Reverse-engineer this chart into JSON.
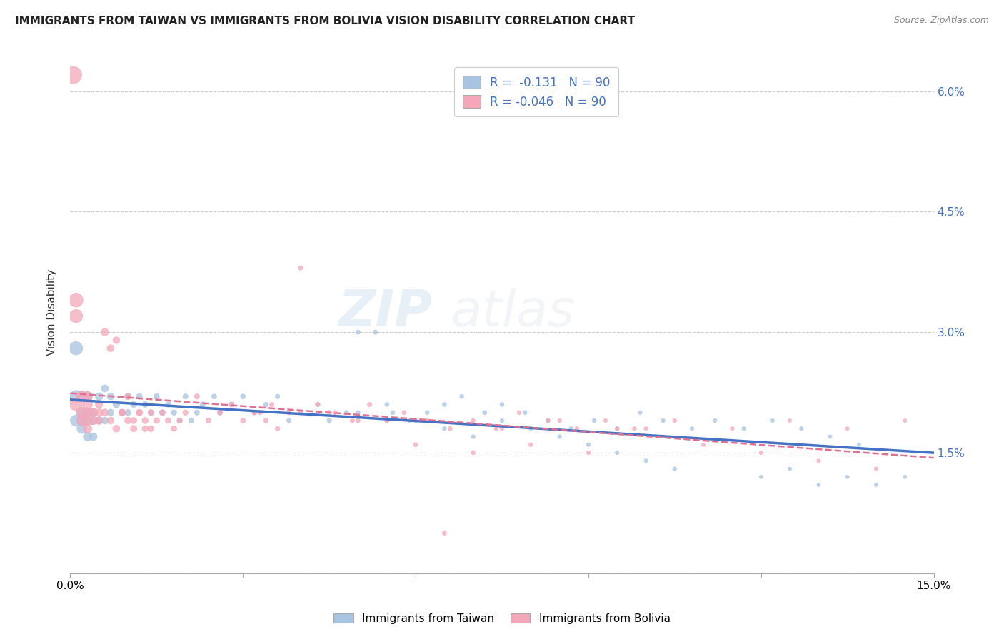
{
  "title": "IMMIGRANTS FROM TAIWAN VS IMMIGRANTS FROM BOLIVIA VISION DISABILITY CORRELATION CHART",
  "source": "Source: ZipAtlas.com",
  "ylabel": "Vision Disability",
  "x_min": 0.0,
  "x_max": 0.15,
  "y_min": 0.0,
  "y_max": 0.065,
  "taiwan_color": "#a8c4e0",
  "bolivia_color": "#f4a7b9",
  "taiwan_line_color": "#4472c4",
  "bolivia_line_color": "#e07090",
  "taiwan_R": -0.131,
  "taiwan_N": 90,
  "bolivia_R": -0.046,
  "bolivia_N": 90,
  "legend_taiwan_label": "Immigrants from Taiwan",
  "legend_bolivia_label": "Immigrants from Bolivia",
  "taiwan_x": [
    0.001,
    0.001,
    0.001,
    0.002,
    0.002,
    0.002,
    0.002,
    0.003,
    0.003,
    0.003,
    0.003,
    0.004,
    0.004,
    0.004,
    0.005,
    0.005,
    0.006,
    0.006,
    0.007,
    0.007,
    0.008,
    0.009,
    0.01,
    0.01,
    0.011,
    0.012,
    0.013,
    0.014,
    0.015,
    0.016,
    0.017,
    0.018,
    0.019,
    0.02,
    0.021,
    0.022,
    0.023,
    0.025,
    0.026,
    0.028,
    0.03,
    0.032,
    0.034,
    0.036,
    0.038,
    0.04,
    0.043,
    0.045,
    0.048,
    0.05,
    0.053,
    0.056,
    0.059,
    0.062,
    0.065,
    0.068,
    0.072,
    0.075,
    0.079,
    0.083,
    0.087,
    0.091,
    0.095,
    0.099,
    0.103,
    0.108,
    0.112,
    0.117,
    0.122,
    0.127,
    0.132,
    0.137,
    0.05,
    0.055,
    0.06,
    0.065,
    0.07,
    0.075,
    0.08,
    0.085,
    0.09,
    0.095,
    0.1,
    0.105,
    0.12,
    0.125,
    0.13,
    0.135,
    0.14,
    0.145
  ],
  "taiwan_y": [
    0.028,
    0.022,
    0.019,
    0.022,
    0.02,
    0.019,
    0.018,
    0.022,
    0.02,
    0.019,
    0.017,
    0.02,
    0.019,
    0.017,
    0.022,
    0.019,
    0.023,
    0.019,
    0.022,
    0.02,
    0.021,
    0.02,
    0.022,
    0.02,
    0.021,
    0.022,
    0.021,
    0.02,
    0.022,
    0.02,
    0.021,
    0.02,
    0.019,
    0.022,
    0.019,
    0.02,
    0.021,
    0.022,
    0.02,
    0.021,
    0.022,
    0.02,
    0.021,
    0.022,
    0.019,
    0.02,
    0.021,
    0.019,
    0.02,
    0.03,
    0.03,
    0.02,
    0.019,
    0.02,
    0.021,
    0.022,
    0.02,
    0.021,
    0.02,
    0.019,
    0.018,
    0.019,
    0.018,
    0.02,
    0.019,
    0.018,
    0.019,
    0.018,
    0.019,
    0.018,
    0.017,
    0.016,
    0.02,
    0.021,
    0.019,
    0.018,
    0.017,
    0.019,
    0.018,
    0.017,
    0.016,
    0.015,
    0.014,
    0.013,
    0.012,
    0.013,
    0.011,
    0.012,
    0.011,
    0.012
  ],
  "taiwan_sizes": [
    180,
    150,
    130,
    120,
    110,
    100,
    95,
    90,
    85,
    80,
    75,
    70,
    65,
    60,
    58,
    55,
    52,
    50,
    48,
    46,
    44,
    42,
    40,
    38,
    37,
    36,
    35,
    34,
    33,
    32,
    31,
    30,
    29,
    28,
    27,
    27,
    26,
    25,
    25,
    24,
    23,
    22,
    22,
    21,
    21,
    20,
    20,
    20,
    19,
    19,
    19,
    18,
    18,
    18,
    17,
    17,
    17,
    17,
    16,
    16,
    16,
    16,
    15,
    15,
    15,
    15,
    15,
    15,
    14,
    14,
    14,
    14,
    17,
    17,
    16,
    16,
    16,
    15,
    15,
    15,
    15,
    14,
    14,
    14,
    13,
    13,
    12,
    12,
    12,
    12
  ],
  "bolivia_x": [
    0.0005,
    0.001,
    0.001,
    0.001,
    0.002,
    0.002,
    0.002,
    0.003,
    0.003,
    0.003,
    0.003,
    0.003,
    0.004,
    0.004,
    0.005,
    0.005,
    0.006,
    0.007,
    0.008,
    0.009,
    0.01,
    0.011,
    0.012,
    0.013,
    0.014,
    0.015,
    0.016,
    0.017,
    0.018,
    0.019,
    0.02,
    0.022,
    0.024,
    0.026,
    0.028,
    0.03,
    0.032,
    0.034,
    0.036,
    0.038,
    0.04,
    0.043,
    0.046,
    0.049,
    0.052,
    0.055,
    0.058,
    0.062,
    0.066,
    0.07,
    0.074,
    0.078,
    0.083,
    0.088,
    0.093,
    0.098,
    0.033,
    0.04,
    0.05,
    0.06,
    0.07,
    0.08,
    0.09,
    0.1,
    0.11,
    0.12,
    0.13,
    0.14,
    0.035,
    0.045,
    0.055,
    0.065,
    0.075,
    0.085,
    0.095,
    0.105,
    0.115,
    0.125,
    0.135,
    0.145,
    0.005,
    0.006,
    0.007,
    0.008,
    0.009,
    0.01,
    0.011,
    0.012,
    0.013,
    0.014
  ],
  "bolivia_y": [
    0.062,
    0.034,
    0.032,
    0.021,
    0.022,
    0.02,
    0.019,
    0.022,
    0.021,
    0.02,
    0.019,
    0.018,
    0.02,
    0.019,
    0.02,
    0.019,
    0.03,
    0.028,
    0.029,
    0.02,
    0.022,
    0.019,
    0.02,
    0.018,
    0.02,
    0.019,
    0.02,
    0.019,
    0.018,
    0.019,
    0.02,
    0.022,
    0.019,
    0.02,
    0.021,
    0.019,
    0.02,
    0.019,
    0.018,
    0.02,
    0.038,
    0.021,
    0.02,
    0.019,
    0.021,
    0.019,
    0.02,
    0.019,
    0.018,
    0.019,
    0.018,
    0.02,
    0.019,
    0.018,
    0.019,
    0.018,
    0.02,
    0.02,
    0.019,
    0.016,
    0.015,
    0.016,
    0.015,
    0.018,
    0.016,
    0.015,
    0.014,
    0.013,
    0.021,
    0.02,
    0.019,
    0.005,
    0.018,
    0.019,
    0.018,
    0.019,
    0.018,
    0.019,
    0.018,
    0.019,
    0.021,
    0.02,
    0.019,
    0.018,
    0.02,
    0.019,
    0.018,
    0.02,
    0.019,
    0.018
  ],
  "bolivia_sizes": [
    300,
    200,
    180,
    160,
    130,
    120,
    110,
    100,
    95,
    90,
    85,
    80,
    75,
    70,
    65,
    60,
    55,
    50,
    48,
    44,
    42,
    40,
    38,
    37,
    35,
    34,
    33,
    32,
    31,
    30,
    29,
    28,
    27,
    26,
    25,
    24,
    23,
    22,
    21,
    21,
    20,
    20,
    19,
    19,
    19,
    18,
    18,
    18,
    17,
    17,
    17,
    16,
    16,
    16,
    15,
    15,
    20,
    19,
    18,
    17,
    17,
    16,
    15,
    15,
    14,
    14,
    13,
    13,
    20,
    19,
    18,
    17,
    16,
    15,
    15,
    14,
    14,
    13,
    13,
    12,
    55,
    52,
    50,
    48,
    46,
    44,
    42,
    40,
    38,
    37
  ]
}
